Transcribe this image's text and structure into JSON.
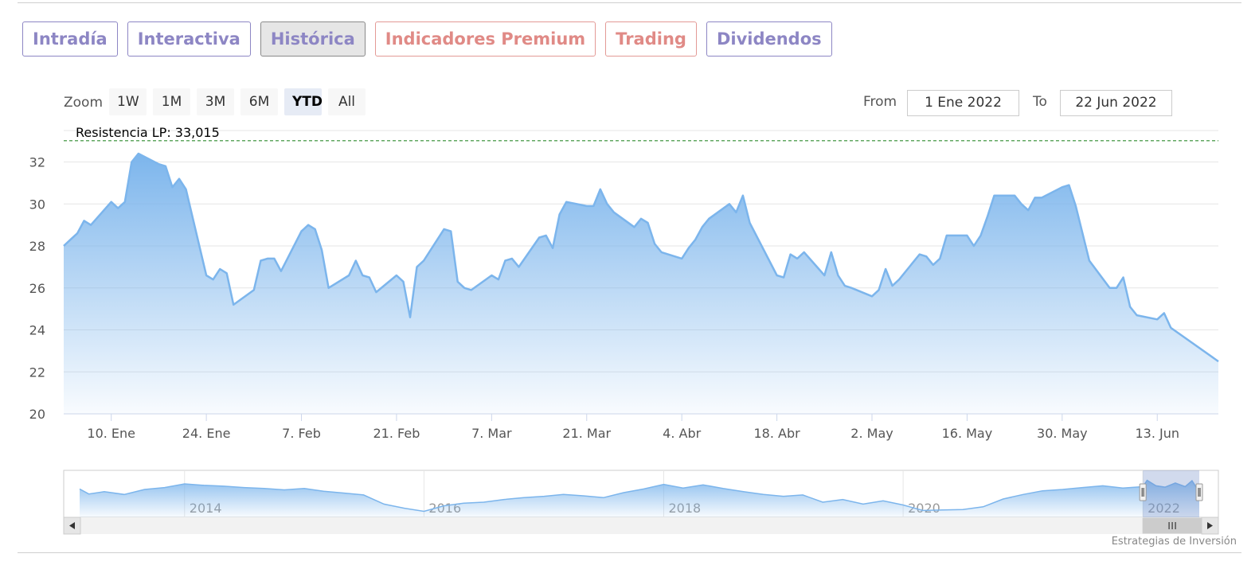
{
  "tabs": [
    {
      "label": "Intradía",
      "type": "normal"
    },
    {
      "label": "Interactiva",
      "type": "normal"
    },
    {
      "label": "Histórica",
      "type": "active"
    },
    {
      "label": "Indicadores Premium",
      "type": "premium"
    },
    {
      "label": "Trading",
      "type": "premium"
    },
    {
      "label": "Dividendos",
      "type": "normal"
    }
  ],
  "range_selector": {
    "zoom_label": "Zoom",
    "buttons": [
      "1W",
      "1M",
      "3M",
      "6M",
      "YTD",
      "All"
    ],
    "selected": "YTD",
    "from_label": "From",
    "from_value": "1 Ene 2022",
    "to_label": "To",
    "to_value": "22 Jun 2022"
  },
  "chart_data": {
    "type": "area",
    "title": "",
    "xlabel": "",
    "ylabel": "",
    "ylim": [
      20,
      33.5
    ],
    "y_ticks": [
      20,
      22,
      24,
      26,
      28,
      30,
      32
    ],
    "x_range": [
      "2022-01-03",
      "2022-06-22"
    ],
    "x_ticks": [
      {
        "date": "2022-01-10",
        "label": "10. Ene"
      },
      {
        "date": "2022-01-24",
        "label": "24. Ene"
      },
      {
        "date": "2022-02-07",
        "label": "7. Feb"
      },
      {
        "date": "2022-02-21",
        "label": "21. Feb"
      },
      {
        "date": "2022-03-07",
        "label": "7. Mar"
      },
      {
        "date": "2022-03-21",
        "label": "21. Mar"
      },
      {
        "date": "2022-04-04",
        "label": "4. Abr"
      },
      {
        "date": "2022-04-18",
        "label": "18. Abr"
      },
      {
        "date": "2022-05-02",
        "label": "2. May"
      },
      {
        "date": "2022-05-16",
        "label": "16. May"
      },
      {
        "date": "2022-05-30",
        "label": "30. May"
      },
      {
        "date": "2022-06-13",
        "label": "13. Jun"
      }
    ],
    "grid": true,
    "series_color": "#7cb5ec",
    "plot_line": {
      "label": "Resistencia LP: 33,015",
      "value": 33.015,
      "color": "#2e8b2e"
    },
    "points": [
      [
        "2022-01-03",
        28.0
      ],
      [
        "2022-01-04",
        28.3
      ],
      [
        "2022-01-05",
        28.6
      ],
      [
        "2022-01-06",
        29.2
      ],
      [
        "2022-01-07",
        29.0
      ],
      [
        "2022-01-10",
        30.1
      ],
      [
        "2022-01-11",
        29.8
      ],
      [
        "2022-01-12",
        30.1
      ],
      [
        "2022-01-13",
        32.0
      ],
      [
        "2022-01-14",
        32.4
      ],
      [
        "2022-01-17",
        31.9
      ],
      [
        "2022-01-18",
        31.8
      ],
      [
        "2022-01-19",
        30.8
      ],
      [
        "2022-01-20",
        31.2
      ],
      [
        "2022-01-21",
        30.7
      ],
      [
        "2022-01-24",
        26.6
      ],
      [
        "2022-01-25",
        26.4
      ],
      [
        "2022-01-26",
        26.9
      ],
      [
        "2022-01-27",
        26.7
      ],
      [
        "2022-01-28",
        25.2
      ],
      [
        "2022-01-31",
        25.9
      ],
      [
        "2022-02-01",
        27.3
      ],
      [
        "2022-02-02",
        27.4
      ],
      [
        "2022-02-03",
        27.4
      ],
      [
        "2022-02-04",
        26.8
      ],
      [
        "2022-02-07",
        28.7
      ],
      [
        "2022-02-08",
        29.0
      ],
      [
        "2022-02-09",
        28.8
      ],
      [
        "2022-02-10",
        27.8
      ],
      [
        "2022-02-11",
        26.0
      ],
      [
        "2022-02-14",
        26.6
      ],
      [
        "2022-02-15",
        27.3
      ],
      [
        "2022-02-16",
        26.6
      ],
      [
        "2022-02-17",
        26.5
      ],
      [
        "2022-02-18",
        25.8
      ],
      [
        "2022-02-21",
        26.6
      ],
      [
        "2022-02-22",
        26.3
      ],
      [
        "2022-02-23",
        24.6
      ],
      [
        "2022-02-24",
        27.0
      ],
      [
        "2022-02-25",
        27.3
      ],
      [
        "2022-02-28",
        28.8
      ],
      [
        "2022-03-01",
        28.7
      ],
      [
        "2022-03-02",
        26.3
      ],
      [
        "2022-03-03",
        26.0
      ],
      [
        "2022-03-04",
        25.9
      ],
      [
        "2022-03-07",
        26.6
      ],
      [
        "2022-03-08",
        26.4
      ],
      [
        "2022-03-09",
        27.3
      ],
      [
        "2022-03-10",
        27.4
      ],
      [
        "2022-03-11",
        27.0
      ],
      [
        "2022-03-14",
        28.4
      ],
      [
        "2022-03-15",
        28.5
      ],
      [
        "2022-03-16",
        27.9
      ],
      [
        "2022-03-17",
        29.5
      ],
      [
        "2022-03-18",
        30.1
      ],
      [
        "2022-03-21",
        29.9
      ],
      [
        "2022-03-22",
        29.9
      ],
      [
        "2022-03-23",
        30.7
      ],
      [
        "2022-03-24",
        30.0
      ],
      [
        "2022-03-25",
        29.6
      ],
      [
        "2022-03-28",
        28.9
      ],
      [
        "2022-03-29",
        29.3
      ],
      [
        "2022-03-30",
        29.1
      ],
      [
        "2022-03-31",
        28.1
      ],
      [
        "2022-04-01",
        27.7
      ],
      [
        "2022-04-04",
        27.4
      ],
      [
        "2022-04-05",
        27.9
      ],
      [
        "2022-04-06",
        28.3
      ],
      [
        "2022-04-07",
        28.9
      ],
      [
        "2022-04-08",
        29.3
      ],
      [
        "2022-04-11",
        30.0
      ],
      [
        "2022-04-12",
        29.6
      ],
      [
        "2022-04-13",
        30.4
      ],
      [
        "2022-04-14",
        29.1
      ],
      [
        "2022-04-18",
        26.6
      ],
      [
        "2022-04-19",
        26.5
      ],
      [
        "2022-04-20",
        27.6
      ],
      [
        "2022-04-21",
        27.4
      ],
      [
        "2022-04-22",
        27.7
      ],
      [
        "2022-04-25",
        26.6
      ],
      [
        "2022-04-26",
        27.7
      ],
      [
        "2022-04-27",
        26.6
      ],
      [
        "2022-04-28",
        26.1
      ],
      [
        "2022-04-29",
        26.0
      ],
      [
        "2022-05-02",
        25.6
      ],
      [
        "2022-05-03",
        25.9
      ],
      [
        "2022-05-04",
        26.9
      ],
      [
        "2022-05-05",
        26.1
      ],
      [
        "2022-05-06",
        26.4
      ],
      [
        "2022-05-09",
        27.6
      ],
      [
        "2022-05-10",
        27.5
      ],
      [
        "2022-05-11",
        27.1
      ],
      [
        "2022-05-12",
        27.4
      ],
      [
        "2022-05-13",
        28.5
      ],
      [
        "2022-05-16",
        28.5
      ],
      [
        "2022-05-17",
        28.0
      ],
      [
        "2022-05-18",
        28.5
      ],
      [
        "2022-05-19",
        29.4
      ],
      [
        "2022-05-20",
        30.4
      ],
      [
        "2022-05-23",
        30.4
      ],
      [
        "2022-05-24",
        30.0
      ],
      [
        "2022-05-25",
        29.7
      ],
      [
        "2022-05-26",
        30.3
      ],
      [
        "2022-05-27",
        30.3
      ],
      [
        "2022-05-30",
        30.8
      ],
      [
        "2022-05-31",
        30.9
      ],
      [
        "2022-06-01",
        29.9
      ],
      [
        "2022-06-02",
        28.6
      ],
      [
        "2022-06-03",
        27.3
      ],
      [
        "2022-06-06",
        26.0
      ],
      [
        "2022-06-07",
        26.0
      ],
      [
        "2022-06-08",
        26.5
      ],
      [
        "2022-06-09",
        25.1
      ],
      [
        "2022-06-10",
        24.7
      ],
      [
        "2022-06-13",
        24.5
      ],
      [
        "2022-06-14",
        24.8
      ],
      [
        "2022-06-15",
        24.1
      ],
      [
        "2022-06-22",
        22.5
      ]
    ]
  },
  "navigator": {
    "year_labels": [
      "2014",
      "2016",
      "2018",
      "2020",
      "2022"
    ],
    "x_range": [
      "2013-02-15",
      "2022-06-22"
    ],
    "year_starts": [
      "2014-01-01",
      "2016-01-01",
      "2018-01-01",
      "2020-01-01",
      "2022-01-01"
    ],
    "selection": [
      "2022-01-01",
      "2022-06-22"
    ],
    "series": [
      [
        "2013-02-15",
        27.5
      ],
      [
        "2013-03-15",
        26.4
      ],
      [
        "2013-05-01",
        26.9
      ],
      [
        "2013-07-01",
        26.3
      ],
      [
        "2013-09-01",
        27.4
      ],
      [
        "2013-11-01",
        27.8
      ],
      [
        "2014-01-01",
        28.6
      ],
      [
        "2014-03-01",
        28.3
      ],
      [
        "2014-05-01",
        28.1
      ],
      [
        "2014-07-01",
        27.8
      ],
      [
        "2014-09-01",
        27.6
      ],
      [
        "2014-11-01",
        27.3
      ],
      [
        "2015-01-01",
        27.6
      ],
      [
        "2015-03-01",
        27.0
      ],
      [
        "2015-05-01",
        26.6
      ],
      [
        "2015-07-01",
        26.2
      ],
      [
        "2015-09-01",
        24.2
      ],
      [
        "2015-11-01",
        23.3
      ],
      [
        "2016-01-01",
        22.6
      ],
      [
        "2016-03-01",
        23.8
      ],
      [
        "2016-05-01",
        24.4
      ],
      [
        "2016-07-01",
        24.6
      ],
      [
        "2016-09-01",
        25.2
      ],
      [
        "2016-11-01",
        25.6
      ],
      [
        "2017-01-01",
        25.9
      ],
      [
        "2017-03-01",
        26.3
      ],
      [
        "2017-05-01",
        26.0
      ],
      [
        "2017-07-01",
        25.6
      ],
      [
        "2017-09-01",
        26.7
      ],
      [
        "2017-11-01",
        27.5
      ],
      [
        "2018-01-01",
        28.5
      ],
      [
        "2018-03-01",
        27.7
      ],
      [
        "2018-05-01",
        28.4
      ],
      [
        "2018-07-01",
        27.6
      ],
      [
        "2018-09-01",
        26.9
      ],
      [
        "2018-11-01",
        26.3
      ],
      [
        "2019-01-01",
        25.9
      ],
      [
        "2019-03-01",
        26.2
      ],
      [
        "2019-05-01",
        24.6
      ],
      [
        "2019-07-01",
        25.2
      ],
      [
        "2019-09-01",
        24.2
      ],
      [
        "2019-11-01",
        24.9
      ],
      [
        "2020-01-01",
        24.0
      ],
      [
        "2020-03-01",
        22.8
      ],
      [
        "2020-05-01",
        22.9
      ],
      [
        "2020-07-01",
        23.0
      ],
      [
        "2020-09-01",
        23.6
      ],
      [
        "2020-11-01",
        25.3
      ],
      [
        "2021-01-01",
        26.3
      ],
      [
        "2021-03-01",
        27.1
      ],
      [
        "2021-05-01",
        27.4
      ],
      [
        "2021-07-01",
        27.8
      ],
      [
        "2021-09-01",
        28.2
      ],
      [
        "2021-11-01",
        27.7
      ],
      [
        "2022-01-01",
        28.0
      ],
      [
        "2022-01-14",
        29.4
      ],
      [
        "2022-02-10",
        28.2
      ],
      [
        "2022-03-10",
        27.9
      ],
      [
        "2022-04-10",
        28.8
      ],
      [
        "2022-05-10",
        28.0
      ],
      [
        "2022-05-31",
        29.3
      ],
      [
        "2022-06-15",
        27.6
      ],
      [
        "2022-06-22",
        25.8
      ]
    ]
  },
  "credit": "Estrategias de Inversión"
}
